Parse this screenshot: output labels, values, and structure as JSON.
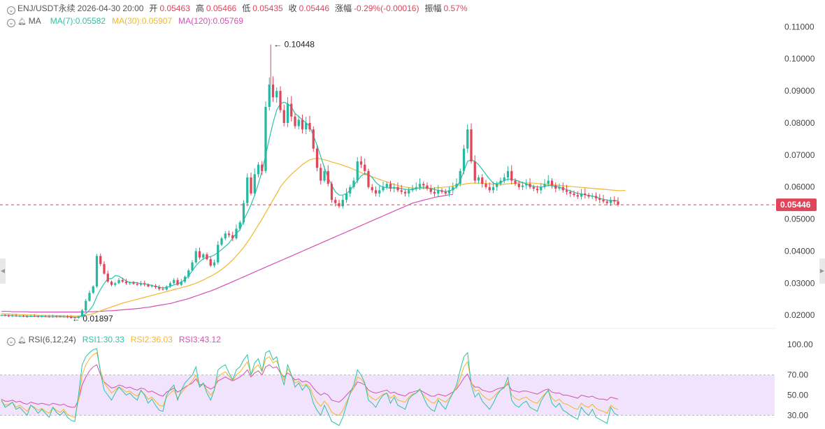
{
  "header": {
    "symbol": "ENJ/USDT永续",
    "datetime": "2026-04-30 20:00",
    "open_label": "开",
    "open_value": "0.05463",
    "high_label": "高",
    "high_value": "0.05466",
    "low_label": "低",
    "low_value": "0.05435",
    "close_label": "收",
    "close_value": "0.05446",
    "change_label": "涨幅",
    "change_value": "-0.29%(-0.00016)",
    "amplitude_label": "振幅",
    "amplitude_value": "0.57%"
  },
  "ma_legend": {
    "name": "MA",
    "ma7": "MA(7):0.05582",
    "ma30": "MA(30):0.05907",
    "ma120": "MA(120):0.05769"
  },
  "rsi_legend": {
    "name": "RSI(6,12,24)",
    "rsi1": "RSI1:30.33",
    "rsi2": "RSI2:36.03",
    "rsi3": "RSI3:43.12"
  },
  "colors": {
    "up": "#26b8a0",
    "down": "#e0455a",
    "ma7": "#27c4a8",
    "ma30": "#f1b72e",
    "ma120": "#d450b4",
    "rsi_band": "#f1e3fb",
    "price_tag": "#e0455a"
  },
  "chart_data": {
    "type": "candlestick",
    "price_axis": {
      "range": [
        0.017,
        0.114
      ],
      "ticks": [
        "0.11000",
        "0.10000",
        "0.09000",
        "0.08000",
        "0.07000",
        "0.06000",
        "0.05000",
        "0.04000",
        "0.03000",
        "0.02000"
      ]
    },
    "last_price": "0.05446",
    "high_annotation": "0.10448",
    "low_annotation": "0.01897",
    "rsi_axis": {
      "range": [
        22,
        105
      ],
      "ticks": [
        "100.00",
        "70.00",
        "50.00",
        "30.00"
      ],
      "band": [
        30,
        70
      ]
    },
    "prices": [
      0.02,
      0.0199,
      0.0198,
      0.0199,
      0.0197,
      0.0198,
      0.0197,
      0.0196,
      0.0198,
      0.0197,
      0.0196,
      0.0197,
      0.0196,
      0.0195,
      0.0197,
      0.0196,
      0.0195,
      0.0196,
      0.0194,
      0.0193,
      0.0192,
      0.0196,
      0.0215,
      0.0245,
      0.027,
      0.029,
      0.0385,
      0.036,
      0.033,
      0.0305,
      0.0295,
      0.03,
      0.031,
      0.0305,
      0.03,
      0.0302,
      0.0298,
      0.0295,
      0.03,
      0.0296,
      0.029,
      0.0292,
      0.0288,
      0.0282,
      0.028,
      0.029,
      0.03,
      0.031,
      0.0295,
      0.0305,
      0.032,
      0.034,
      0.0365,
      0.04,
      0.038,
      0.039,
      0.0375,
      0.0355,
      0.0365,
      0.042,
      0.044,
      0.0455,
      0.045,
      0.044,
      0.047,
      0.049,
      0.055,
      0.063,
      0.058,
      0.064,
      0.067,
      0.065,
      0.085,
      0.092,
      0.088,
      0.09,
      0.084,
      0.08,
      0.086,
      0.082,
      0.079,
      0.081,
      0.078,
      0.08,
      0.078,
      0.072,
      0.066,
      0.062,
      0.065,
      0.061,
      0.056,
      0.055,
      0.054,
      0.056,
      0.058,
      0.06,
      0.062,
      0.068,
      0.067,
      0.065,
      0.06,
      0.059,
      0.058,
      0.059,
      0.06,
      0.061,
      0.0595,
      0.06,
      0.059,
      0.0585,
      0.058,
      0.059,
      0.0595,
      0.06,
      0.061,
      0.0605,
      0.0595,
      0.0585,
      0.058,
      0.059,
      0.0585,
      0.058,
      0.059,
      0.06,
      0.061,
      0.065,
      0.072,
      0.078,
      0.068,
      0.062,
      0.063,
      0.061,
      0.06,
      0.059,
      0.06,
      0.061,
      0.062,
      0.063,
      0.065,
      0.062,
      0.061,
      0.06,
      0.0605,
      0.061,
      0.06,
      0.0595,
      0.059,
      0.06,
      0.061,
      0.062,
      0.0605,
      0.0595,
      0.06,
      0.059,
      0.0585,
      0.058,
      0.0575,
      0.057,
      0.058,
      0.0575,
      0.057,
      0.0572,
      0.0565,
      0.056,
      0.0555,
      0.055,
      0.056,
      0.0555,
      0.0545
    ],
    "ma7": [
      0.02,
      0.02,
      0.0199,
      0.0199,
      0.0198,
      0.0198,
      0.0198,
      0.0197,
      0.0197,
      0.0197,
      0.0197,
      0.0197,
      0.0196,
      0.0196,
      0.0196,
      0.0196,
      0.0196,
      0.0195,
      0.0195,
      0.0195,
      0.0194,
      0.0194,
      0.0198,
      0.0205,
      0.0216,
      0.0231,
      0.0259,
      0.0281,
      0.0299,
      0.0314,
      0.0314,
      0.0324,
      0.0322,
      0.0315,
      0.0307,
      0.0302,
      0.0303,
      0.0301,
      0.0299,
      0.0298,
      0.0296,
      0.0293,
      0.029,
      0.0288,
      0.0285,
      0.0287,
      0.029,
      0.0295,
      0.0298,
      0.0303,
      0.0312,
      0.0323,
      0.0339,
      0.0355,
      0.0367,
      0.0376,
      0.0381,
      0.0383,
      0.0388,
      0.0396,
      0.0405,
      0.0415,
      0.0425,
      0.0441,
      0.0455,
      0.0467,
      0.0497,
      0.052,
      0.0545,
      0.0575,
      0.061,
      0.065,
      0.07,
      0.0752,
      0.08,
      0.084,
      0.086,
      0.0865,
      0.086,
      0.085,
      0.083,
      0.082,
      0.081,
      0.08,
      0.079,
      0.076,
      0.073,
      0.0695,
      0.066,
      0.063,
      0.0605,
      0.0585,
      0.0575,
      0.0575,
      0.058,
      0.059,
      0.0605,
      0.062,
      0.0635,
      0.0642,
      0.064,
      0.063,
      0.0615,
      0.0605,
      0.06,
      0.0598,
      0.0597,
      0.0598,
      0.0597,
      0.0595,
      0.0593,
      0.0592,
      0.0592,
      0.0595,
      0.0598,
      0.06,
      0.0598,
      0.0595,
      0.0592,
      0.059,
      0.0588,
      0.0586,
      0.0588,
      0.0592,
      0.06,
      0.062,
      0.065,
      0.068,
      0.0685,
      0.068,
      0.067,
      0.0655,
      0.064,
      0.0625,
      0.0612,
      0.061,
      0.0615,
      0.062,
      0.0625,
      0.0625,
      0.0622,
      0.0618,
      0.0614,
      0.061,
      0.0605,
      0.0602,
      0.06,
      0.06,
      0.0602,
      0.0605,
      0.0604,
      0.0602,
      0.06,
      0.0596,
      0.0592,
      0.0588,
      0.0584,
      0.058,
      0.0578,
      0.0576,
      0.0574,
      0.0572,
      0.0569,
      0.0565,
      0.0562,
      0.0559,
      0.0558,
      0.0557,
      0.0558
    ],
    "ma30": [
      0.0205,
      0.0204,
      0.0204,
      0.0203,
      0.0203,
      0.0202,
      0.0202,
      0.0201,
      0.0201,
      0.0201,
      0.02,
      0.02,
      0.02,
      0.02,
      0.0199,
      0.0199,
      0.0199,
      0.0199,
      0.0198,
      0.0198,
      0.0198,
      0.0198,
      0.0199,
      0.02,
      0.0202,
      0.0205,
      0.0209,
      0.0214,
      0.0218,
      0.0222,
      0.0226,
      0.023,
      0.0234,
      0.0238,
      0.0241,
      0.0244,
      0.0247,
      0.025,
      0.0253,
      0.0256,
      0.0259,
      0.0262,
      0.0265,
      0.0268,
      0.0271,
      0.0274,
      0.0277,
      0.028,
      0.0283,
      0.0286,
      0.0289,
      0.0292,
      0.0296,
      0.03,
      0.0305,
      0.031,
      0.0316,
      0.0322,
      0.0328,
      0.0335,
      0.0343,
      0.0352,
      0.0362,
      0.0373,
      0.0385,
      0.0398,
      0.0412,
      0.0428,
      0.0445,
      0.0463,
      0.0482,
      0.05,
      0.052,
      0.054,
      0.056,
      0.058,
      0.06,
      0.0615,
      0.0628,
      0.064,
      0.065,
      0.066,
      0.067,
      0.0678,
      0.0685,
      0.0688,
      0.069,
      0.0688,
      0.0685,
      0.0682,
      0.0678,
      0.0675,
      0.0672,
      0.0668,
      0.0664,
      0.066,
      0.0655,
      0.065,
      0.0645,
      0.064,
      0.0636,
      0.0632,
      0.0628,
      0.0624,
      0.062,
      0.0616,
      0.0612,
      0.0608,
      0.0605,
      0.0602,
      0.06,
      0.0598,
      0.0597,
      0.0596,
      0.0596,
      0.0596,
      0.0596,
      0.0596,
      0.0597,
      0.0598,
      0.0599,
      0.06,
      0.0601,
      0.0603,
      0.0605,
      0.0607,
      0.0609,
      0.0611,
      0.0612,
      0.0612,
      0.0612,
      0.0612,
      0.0611,
      0.061,
      0.0609,
      0.0608,
      0.0608,
      0.0609,
      0.061,
      0.0611,
      0.0612,
      0.0613,
      0.0613,
      0.0613,
      0.0613,
      0.0612,
      0.0611,
      0.061,
      0.0609,
      0.0608,
      0.0607,
      0.0606,
      0.0605,
      0.0604,
      0.0603,
      0.0602,
      0.0601,
      0.06,
      0.0599,
      0.0598,
      0.0597,
      0.0596,
      0.0595,
      0.0594,
      0.0593,
      0.0592,
      0.0591,
      0.059,
      0.0589,
      0.0589,
      0.059
    ],
    "ma120": [
      0.0212,
      0.0212,
      0.0212,
      0.0211,
      0.0211,
      0.0211,
      0.0211,
      0.0211,
      0.021,
      0.021,
      0.021,
      0.021,
      0.021,
      0.021,
      0.021,
      0.021,
      0.021,
      0.021,
      0.021,
      0.021,
      0.021,
      0.021,
      0.021,
      0.021,
      0.0211,
      0.0211,
      0.0212,
      0.0212,
      0.0213,
      0.0214,
      0.0214,
      0.0215,
      0.0216,
      0.0217,
      0.0218,
      0.0219,
      0.022,
      0.0221,
      0.0222,
      0.0224,
      0.0225,
      0.0227,
      0.0229,
      0.0231,
      0.0233,
      0.0235,
      0.0237,
      0.024,
      0.0243,
      0.0246,
      0.0249,
      0.0252,
      0.0256,
      0.026,
      0.0264,
      0.0268,
      0.0272,
      0.0276,
      0.028,
      0.0285,
      0.029,
      0.0295,
      0.03,
      0.0305,
      0.031,
      0.0315,
      0.032,
      0.0325,
      0.033,
      0.0335,
      0.034,
      0.0345,
      0.035,
      0.0355,
      0.036,
      0.0365,
      0.037,
      0.0375,
      0.038,
      0.0385,
      0.039,
      0.0395,
      0.04,
      0.0405,
      0.041,
      0.0415,
      0.042,
      0.0425,
      0.043,
      0.0435,
      0.044,
      0.0445,
      0.045,
      0.0455,
      0.046,
      0.0465,
      0.047,
      0.0475,
      0.048,
      0.0485,
      0.049,
      0.0495,
      0.05,
      0.0505,
      0.051,
      0.0515,
      0.052,
      0.0525,
      0.053,
      0.0535,
      0.054,
      0.0545,
      0.055,
      0.0553,
      0.0556,
      0.0559,
      0.0562,
      0.0565,
      0.0568,
      0.057,
      0.0572,
      0.0574,
      0.0576,
      0.0577
    ],
    "rsi1": [
      45,
      38,
      40,
      43,
      36,
      38,
      34,
      30,
      40,
      37,
      32,
      36,
      32,
      28,
      38,
      33,
      30,
      34,
      28,
      25,
      24,
      50,
      80,
      88,
      92,
      95,
      96,
      72,
      55,
      50,
      45,
      52,
      58,
      54,
      50,
      52,
      48,
      45,
      55,
      50,
      42,
      46,
      40,
      35,
      34,
      50,
      56,
      60,
      45,
      55,
      62,
      66,
      70,
      78,
      58,
      62,
      52,
      45,
      55,
      75,
      78,
      80,
      72,
      65,
      75,
      78,
      85,
      90,
      70,
      82,
      86,
      74,
      92,
      94,
      85,
      88,
      72,
      60,
      80,
      70,
      58,
      62,
      55,
      60,
      55,
      42,
      35,
      30,
      40,
      32,
      24,
      22,
      20,
      28,
      40,
      52,
      60,
      75,
      70,
      62,
      45,
      42,
      38,
      45,
      50,
      52,
      42,
      48,
      40,
      38,
      36,
      46,
      50,
      52,
      56,
      48,
      40,
      36,
      34,
      45,
      40,
      36,
      45,
      52,
      60,
      75,
      88,
      92,
      60,
      48,
      52,
      44,
      40,
      36,
      42,
      50,
      55,
      58,
      68,
      45,
      40,
      38,
      42,
      44,
      38,
      36,
      34,
      44,
      50,
      55,
      42,
      38,
      42,
      35,
      33,
      30,
      28,
      26,
      38,
      33,
      30,
      36,
      28,
      26,
      24,
      22,
      38,
      32,
      30
    ],
    "rsi2": [
      44,
      40,
      41,
      43,
      38,
      40,
      37,
      34,
      40,
      38,
      35,
      37,
      34,
      32,
      38,
      35,
      33,
      36,
      31,
      29,
      28,
      45,
      70,
      80,
      86,
      90,
      92,
      74,
      62,
      57,
      52,
      55,
      58,
      56,
      53,
      54,
      51,
      49,
      54,
      51,
      46,
      48,
      44,
      40,
      39,
      48,
      52,
      55,
      47,
      52,
      57,
      60,
      64,
      70,
      58,
      61,
      55,
      50,
      55,
      68,
      71,
      73,
      69,
      64,
      70,
      73,
      78,
      83,
      70,
      77,
      80,
      73,
      86,
      88,
      82,
      84,
      74,
      65,
      76,
      70,
      62,
      64,
      59,
      61,
      58,
      49,
      43,
      39,
      44,
      40,
      33,
      31,
      30,
      35,
      43,
      51,
      57,
      68,
      66,
      61,
      50,
      47,
      45,
      48,
      51,
      52,
      47,
      50,
      45,
      44,
      43,
      48,
      51,
      52,
      55,
      50,
      46,
      43,
      42,
      47,
      45,
      43,
      47,
      52,
      57,
      67,
      78,
      83,
      63,
      54,
      55,
      50,
      47,
      45,
      48,
      52,
      55,
      57,
      63,
      50,
      47,
      45,
      47,
      48,
      45,
      43,
      42,
      47,
      51,
      54,
      47,
      44,
      46,
      42,
      41,
      39,
      37,
      36,
      42,
      39,
      38,
      41,
      37,
      35,
      34,
      32,
      40,
      37,
      36
    ],
    "rsi3": [
      46,
      44,
      44,
      45,
      43,
      44,
      42,
      41,
      43,
      42,
      41,
      42,
      41,
      40,
      42,
      41,
      40,
      41,
      39,
      38,
      38,
      45,
      60,
      68,
      74,
      78,
      80,
      70,
      63,
      60,
      57,
      58,
      60,
      59,
      57,
      58,
      56,
      55,
      57,
      56,
      53,
      54,
      52,
      50,
      49,
      53,
      55,
      57,
      53,
      55,
      58,
      60,
      62,
      66,
      60,
      61,
      58,
      56,
      58,
      64,
      66,
      68,
      66,
      64,
      66,
      68,
      71,
      75,
      68,
      72,
      74,
      70,
      78,
      80,
      77,
      78,
      72,
      68,
      72,
      69,
      65,
      66,
      63,
      64,
      62,
      57,
      53,
      50,
      52,
      50,
      45,
      44,
      43,
      46,
      50,
      54,
      57,
      63,
      62,
      60,
      55,
      53,
      52,
      53,
      54,
      55,
      52,
      53,
      51,
      50,
      49,
      52,
      53,
      54,
      55,
      53,
      51,
      49,
      49,
      51,
      50,
      49,
      51,
      53,
      56,
      61,
      67,
      71,
      62,
      58,
      58,
      55,
      54,
      53,
      54,
      56,
      57,
      58,
      61,
      55,
      54,
      53,
      54,
      54,
      53,
      52,
      51,
      53,
      55,
      56,
      53,
      52,
      52,
      50,
      50,
      49,
      48,
      47,
      50,
      49,
      48,
      49,
      47,
      46,
      46,
      45,
      48,
      47,
      46
    ]
  }
}
